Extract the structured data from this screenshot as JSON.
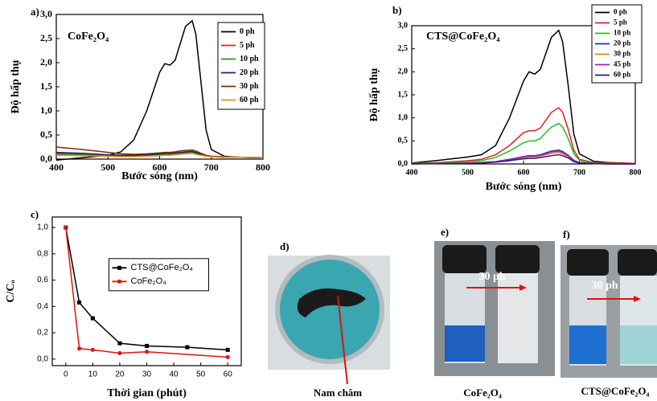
{
  "chart_data": [
    {
      "type": "line",
      "panel_label": "a)",
      "annotation": "CoFe₂O₄",
      "xlabel": "Bước sóng (nm)",
      "ylabel": "Độ hấp thụ",
      "xlim": [
        400,
        800
      ],
      "xticks": [
        400,
        500,
        600,
        700,
        800
      ],
      "ylim": [
        0,
        3.0
      ],
      "yticks": [
        {
          "value": 0,
          "label": "0,0"
        },
        {
          "value": 0.5,
          "label": "0,5"
        },
        {
          "value": 1.0,
          "label": "1,0"
        },
        {
          "value": 1.5,
          "label": "1,5"
        },
        {
          "value": 2.0,
          "label": "2,0"
        },
        {
          "value": 2.5,
          "label": "2,5"
        },
        {
          "value": 3.0,
          "label": "3,0"
        }
      ],
      "legend": "upper right",
      "x": [
        400,
        450,
        500,
        525,
        550,
        575,
        600,
        610,
        620,
        630,
        640,
        650,
        663,
        670,
        680,
        690,
        700,
        725,
        750,
        800
      ],
      "series": [
        {
          "name": "0 ph",
          "color": "#000000",
          "values": [
            -0.02,
            0.03,
            0.08,
            0.15,
            0.4,
            1.0,
            1.8,
            1.98,
            1.95,
            2.05,
            2.4,
            2.75,
            2.87,
            2.6,
            1.6,
            0.6,
            0.2,
            0.06,
            0.04,
            0.03
          ]
        },
        {
          "name": "5 ph",
          "color": "#e02020",
          "values": [
            0.12,
            0.1,
            0.08,
            0.07,
            0.07,
            0.08,
            0.1,
            0.11,
            0.11,
            0.12,
            0.13,
            0.14,
            0.15,
            0.13,
            0.1,
            0.07,
            0.05,
            0.04,
            0.04,
            0.03
          ]
        },
        {
          "name": "10 ph",
          "color": "#1a9a1a",
          "values": [
            0.1,
            0.09,
            0.07,
            0.06,
            0.06,
            0.07,
            0.09,
            0.1,
            0.1,
            0.11,
            0.12,
            0.13,
            0.14,
            0.12,
            0.09,
            0.06,
            0.05,
            0.04,
            0.04,
            0.03
          ]
        },
        {
          "name": "20 ph",
          "color": "#20207a",
          "values": [
            0.14,
            0.12,
            0.09,
            0.08,
            0.08,
            0.09,
            0.11,
            0.12,
            0.12,
            0.13,
            0.14,
            0.15,
            0.16,
            0.14,
            0.1,
            0.07,
            0.05,
            0.04,
            0.04,
            0.03
          ]
        },
        {
          "name": "30 ph",
          "color": "#7b2c0f",
          "values": [
            0.25,
            0.2,
            0.14,
            0.11,
            0.1,
            0.11,
            0.13,
            0.14,
            0.14,
            0.15,
            0.17,
            0.18,
            0.19,
            0.17,
            0.12,
            0.08,
            0.06,
            0.05,
            0.04,
            0.03
          ]
        },
        {
          "name": "60 ph",
          "color": "#f08a10",
          "values": [
            0.08,
            0.07,
            0.06,
            0.05,
            0.05,
            0.06,
            0.07,
            0.08,
            0.08,
            0.09,
            0.1,
            0.11,
            0.12,
            0.1,
            0.08,
            0.06,
            0.05,
            0.04,
            0.04,
            0.03
          ]
        }
      ]
    },
    {
      "type": "line",
      "panel_label": "b)",
      "annotation": "CTS@CoFe₂O₄",
      "xlabel": "Bước sóng (nm)",
      "ylabel": "Độ hấp thụ",
      "xlim": [
        400,
        800
      ],
      "xticks": [
        400,
        500,
        600,
        700,
        800
      ],
      "ylim": [
        0,
        3.0
      ],
      "yticks": [
        {
          "value": 0,
          "label": "0,0"
        },
        {
          "value": 0.5,
          "label": "0,5"
        },
        {
          "value": 1.0,
          "label": "1,0"
        },
        {
          "value": 1.5,
          "label": "1,5"
        },
        {
          "value": 2.0,
          "label": "2,0"
        },
        {
          "value": 2.5,
          "label": "2,5"
        },
        {
          "value": 3.0,
          "label": "3,0"
        }
      ],
      "legend": "upper right",
      "x": [
        400,
        450,
        500,
        525,
        550,
        575,
        600,
        610,
        620,
        630,
        640,
        650,
        663,
        670,
        680,
        690,
        700,
        725,
        750,
        800
      ],
      "series": [
        {
          "name": "0 ph",
          "color": "#000000",
          "values": [
            0.02,
            0.08,
            0.15,
            0.2,
            0.4,
            1.0,
            1.8,
            2.0,
            1.95,
            2.05,
            2.4,
            2.75,
            2.9,
            2.65,
            1.7,
            0.65,
            0.22,
            0.06,
            0.03,
            0.01
          ]
        },
        {
          "name": "5 ph",
          "color": "#e02020",
          "values": [
            0.01,
            0.03,
            0.07,
            0.1,
            0.2,
            0.4,
            0.68,
            0.72,
            0.72,
            0.78,
            0.95,
            1.12,
            1.22,
            1.12,
            0.75,
            0.3,
            0.1,
            0.03,
            0.02,
            0.01
          ]
        },
        {
          "name": "10 ph",
          "color": "#20c020",
          "values": [
            0.01,
            0.02,
            0.05,
            0.07,
            0.14,
            0.28,
            0.46,
            0.5,
            0.5,
            0.55,
            0.68,
            0.8,
            0.88,
            0.8,
            0.55,
            0.22,
            0.08,
            0.02,
            0.01,
            0.0
          ]
        },
        {
          "name": "20 ph",
          "color": "#2030c0",
          "values": [
            0.0,
            0.01,
            0.02,
            0.03,
            0.05,
            0.1,
            0.16,
            0.18,
            0.18,
            0.2,
            0.24,
            0.28,
            0.3,
            0.27,
            0.19,
            0.08,
            0.03,
            0.01,
            0.0,
            0.0
          ]
        },
        {
          "name": "30 ph",
          "color": "#e08a10",
          "values": [
            0.0,
            0.01,
            0.02,
            0.03,
            0.05,
            0.08,
            0.13,
            0.15,
            0.15,
            0.17,
            0.2,
            0.23,
            0.25,
            0.22,
            0.16,
            0.07,
            0.03,
            0.01,
            0.0,
            0.0
          ]
        },
        {
          "name": "45 ph",
          "color": "#a020c0",
          "values": [
            0.0,
            0.01,
            0.02,
            0.03,
            0.05,
            0.09,
            0.15,
            0.17,
            0.17,
            0.19,
            0.22,
            0.26,
            0.28,
            0.25,
            0.18,
            0.07,
            0.03,
            0.01,
            0.0,
            0.0
          ]
        },
        {
          "name": "60 ph",
          "color": "#3a1a6a",
          "values": [
            0.0,
            0.01,
            0.01,
            0.02,
            0.04,
            0.07,
            0.11,
            0.12,
            0.12,
            0.14,
            0.16,
            0.18,
            0.2,
            0.18,
            0.13,
            0.05,
            0.02,
            0.01,
            0.0,
            0.0
          ]
        }
      ]
    },
    {
      "type": "line",
      "panel_label": "c)",
      "xlabel": "Thời gian (phút)",
      "ylabel": "C/Cₒ",
      "xlim": [
        -5,
        65
      ],
      "xticks": [
        0,
        10,
        20,
        30,
        40,
        50,
        60
      ],
      "ylim": [
        -0.05,
        1.08
      ],
      "yticks": [
        {
          "value": 0,
          "label": "0,0"
        },
        {
          "value": 0.2,
          "label": "0,2"
        },
        {
          "value": 0.4,
          "label": "0,4"
        },
        {
          "value": 0.6,
          "label": "0,6"
        },
        {
          "value": 0.8,
          "label": "0,8"
        },
        {
          "value": 1.0,
          "label": "1,0"
        }
      ],
      "legend": "center",
      "series": [
        {
          "name": "CTS@CoFe₂O₄",
          "color": "#000000",
          "marker": "square",
          "x": [
            0,
            5,
            10,
            20,
            30,
            45,
            60
          ],
          "values": [
            1.0,
            0.43,
            0.31,
            0.12,
            0.1,
            0.09,
            0.07
          ]
        },
        {
          "name": "CoFe₂O₄",
          "color": "#e01010",
          "marker": "circle",
          "x": [
            0,
            5,
            10,
            20,
            30,
            60
          ],
          "values": [
            1.0,
            0.08,
            0.07,
            0.045,
            0.055,
            0.015
          ]
        }
      ]
    }
  ],
  "photos": [
    {
      "label": "d)",
      "caption": "Nam châm"
    },
    {
      "label": "e)",
      "caption": "CoFe₂O₄",
      "arrow_text": "30 ph"
    },
    {
      "label": "f)",
      "caption": "CTS@CoFe₂O₄",
      "arrow_text": "30 ph"
    }
  ]
}
